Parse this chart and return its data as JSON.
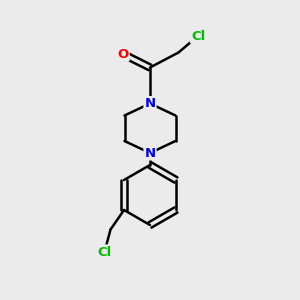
{
  "background_color": "#ebebeb",
  "bond_color": "#000000",
  "bond_width": 1.8,
  "atom_colors": {
    "N": "#0000ee",
    "O": "#ff0000",
    "Cl": "#00bb00"
  },
  "font_size": 9.5,
  "figsize": [
    3.0,
    3.0
  ],
  "dpi": 100
}
